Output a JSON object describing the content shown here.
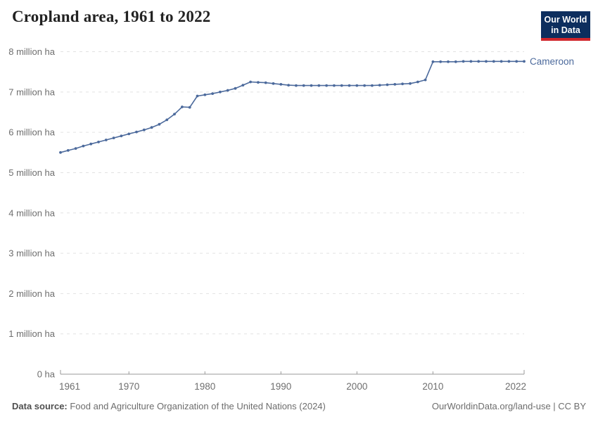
{
  "header": {
    "title": "Cropland area, 1961 to 2022"
  },
  "logo": {
    "line1": "Our World",
    "line2": "in Data",
    "bg_color": "#0d2e5e",
    "accent_color": "#d0262c"
  },
  "footer": {
    "source_label": "Data source:",
    "source_text": " Food and Agriculture Organization of the United Nations (2024)",
    "link_text": "OurWorldinData.org/land-use | CC BY"
  },
  "colors": {
    "grid": "#e2e2e2",
    "axis": "#999999",
    "tick_text": "#6e6e6e",
    "title_text": "#222222"
  },
  "chart_data": {
    "type": "line",
    "title": "Cropland area, 1961 to 2022",
    "xlabel": "",
    "ylabel": "",
    "unit": "million ha",
    "xlim": [
      1961,
      2022
    ],
    "ylim": [
      0,
      8
    ],
    "grid": "horizontal-dashed",
    "legend_position": "end-of-line",
    "x_ticks": [
      1961,
      1970,
      1980,
      1990,
      2000,
      2010,
      2022
    ],
    "y_ticks": [
      {
        "value": 0,
        "label": "0 ha"
      },
      {
        "value": 1,
        "label": "1 million ha"
      },
      {
        "value": 2,
        "label": "2 million ha"
      },
      {
        "value": 3,
        "label": "3 million ha"
      },
      {
        "value": 4,
        "label": "4 million ha"
      },
      {
        "value": 5,
        "label": "5 million ha"
      },
      {
        "value": 6,
        "label": "6 million ha"
      },
      {
        "value": 7,
        "label": "7 million ha"
      },
      {
        "value": 8,
        "label": "8 million ha"
      }
    ],
    "series": [
      {
        "name": "Cameroon",
        "color": "#4C6A9C",
        "x": [
          1961,
          1962,
          1963,
          1964,
          1965,
          1966,
          1967,
          1968,
          1969,
          1970,
          1971,
          1972,
          1973,
          1974,
          1975,
          1976,
          1977,
          1978,
          1979,
          1980,
          1981,
          1982,
          1983,
          1984,
          1985,
          1986,
          1987,
          1988,
          1989,
          1990,
          1991,
          1992,
          1993,
          1994,
          1995,
          1996,
          1997,
          1998,
          1999,
          2000,
          2001,
          2002,
          2003,
          2004,
          2005,
          2006,
          2007,
          2008,
          2009,
          2010,
          2011,
          2012,
          2013,
          2014,
          2015,
          2016,
          2017,
          2018,
          2019,
          2020,
          2021,
          2022
        ],
        "values": [
          5.5,
          5.55,
          5.6,
          5.66,
          5.71,
          5.76,
          5.81,
          5.86,
          5.91,
          5.96,
          6.01,
          6.06,
          6.12,
          6.2,
          6.31,
          6.45,
          6.63,
          6.62,
          6.9,
          6.93,
          6.96,
          7.0,
          7.04,
          7.09,
          7.17,
          7.25,
          7.24,
          7.23,
          7.21,
          7.19,
          7.17,
          7.16,
          7.16,
          7.16,
          7.16,
          7.16,
          7.16,
          7.16,
          7.16,
          7.16,
          7.16,
          7.16,
          7.17,
          7.18,
          7.19,
          7.2,
          7.21,
          7.25,
          7.3,
          7.75,
          7.75,
          7.75,
          7.75,
          7.76,
          7.76,
          7.76,
          7.76,
          7.76,
          7.76,
          7.76,
          7.76,
          7.76
        ]
      }
    ]
  }
}
